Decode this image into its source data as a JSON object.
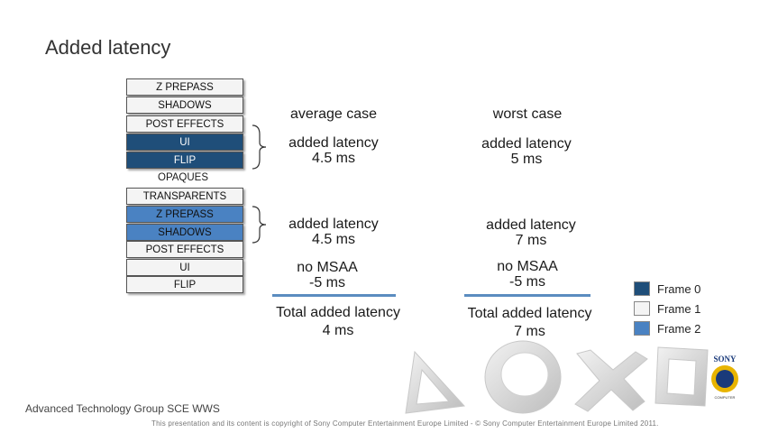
{
  "title": "Added latency",
  "passes": [
    {
      "label": "Z PREPASS",
      "frame": 1
    },
    {
      "label": "SHADOWS",
      "frame": 1
    },
    {
      "label": "POST EFFECTS",
      "frame": 1
    },
    {
      "label": "UI",
      "frame": 0
    },
    {
      "label": "FLIP",
      "frame": 0
    },
    {
      "label": "OPAQUES",
      "frame": 1
    },
    {
      "label": "TRANSPARENTS",
      "frame": 1
    },
    {
      "label": "Z PREPASS",
      "frame": 2
    },
    {
      "label": "SHADOWS",
      "frame": 2
    },
    {
      "label": "POST EFFECTS",
      "frame": 1
    },
    {
      "label": "UI",
      "frame": 1
    },
    {
      "label": "FLIP",
      "frame": 1
    }
  ],
  "columns": {
    "average": {
      "header": "average case",
      "block1": [
        "added latency",
        "4.5 ms"
      ],
      "block2": [
        "added latency",
        "4.5 ms"
      ],
      "block3": [
        "no MSAA",
        "-5 ms"
      ],
      "total": [
        "Total added latency",
        "4 ms"
      ]
    },
    "worst": {
      "header": "worst case",
      "block1": [
        "added latency",
        "5 ms"
      ],
      "block2": [
        "added latency",
        "7 ms"
      ],
      "block3": [
        "no MSAA",
        "-5 ms"
      ],
      "total": [
        "Total added latency",
        "7 ms"
      ]
    }
  },
  "legend": [
    {
      "label": "Frame 0",
      "color": "#1f4e79"
    },
    {
      "label": "Frame 1",
      "color": "#f4f4f4"
    },
    {
      "label": "Frame 2",
      "color": "#4a82c2"
    }
  ],
  "footer": "Advanced Technology Group SCE WWS",
  "copyright": "This presentation and its content is copyright of Sony Computer Entertainment Europe Limited - © Sony Computer Entertainment Europe Limited 2011.",
  "logo": {
    "text": "SONY",
    "subtext": "COMPUTER ENTERTAINMENT"
  }
}
